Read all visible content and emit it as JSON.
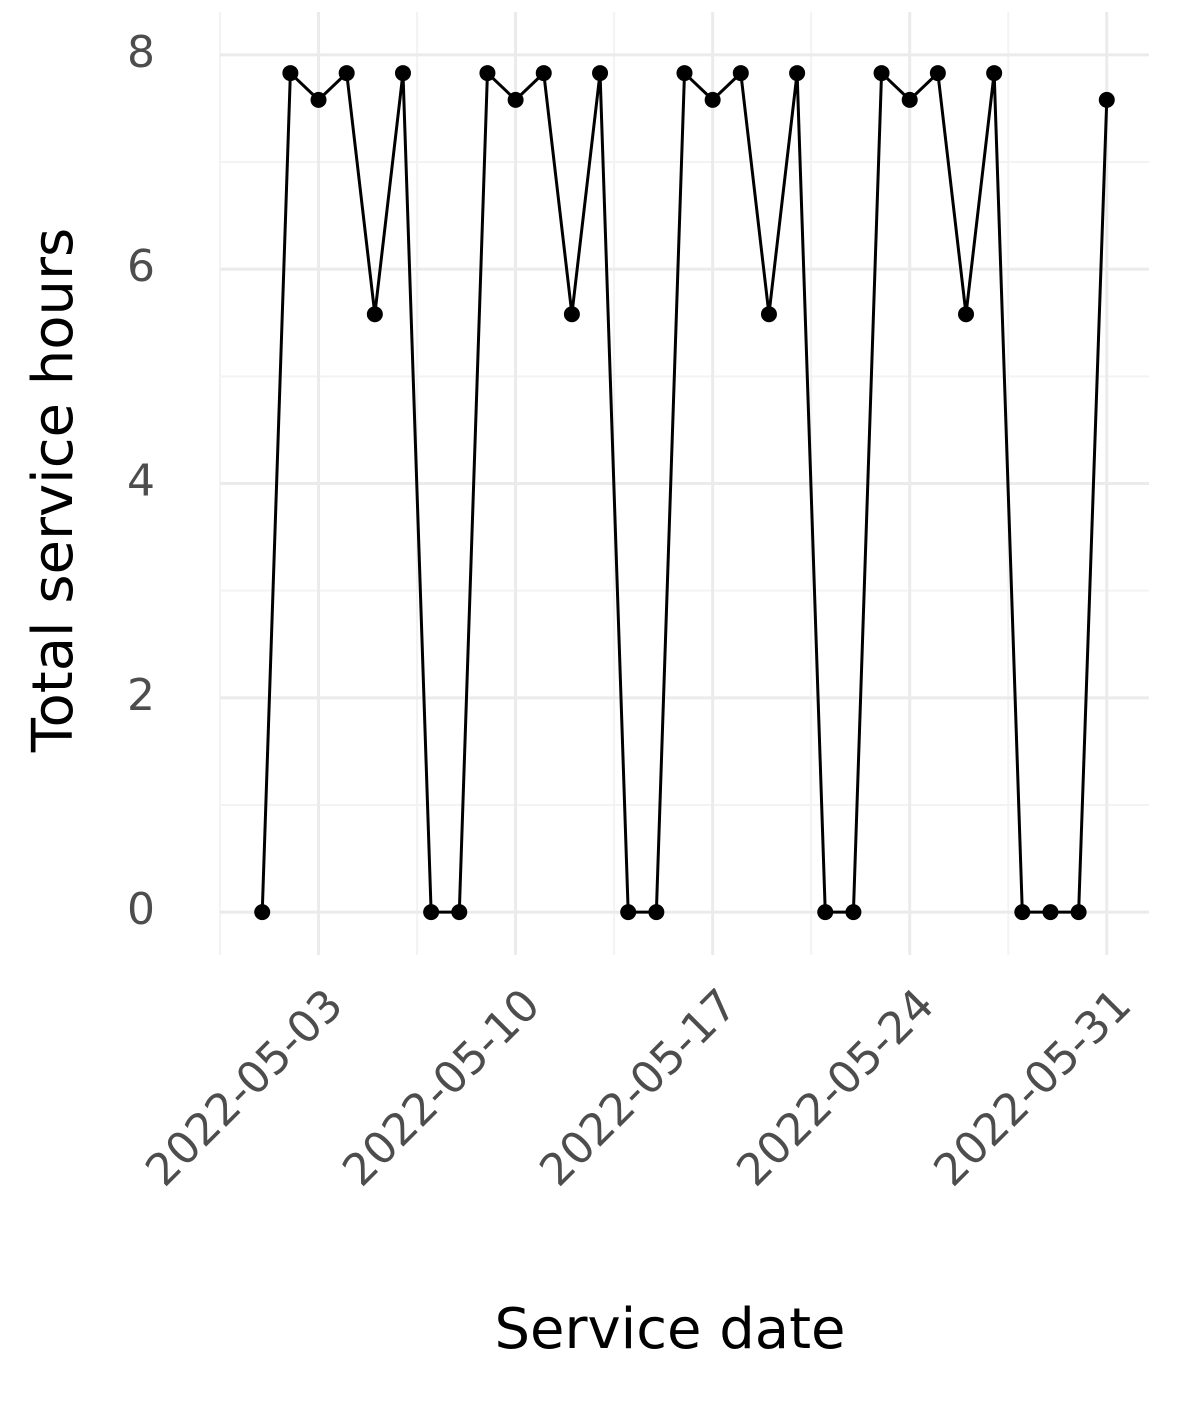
{
  "chart_data": {
    "type": "line",
    "x_label": "Service date",
    "y_label": "Total service hours",
    "x": [
      "2022-05-01",
      "2022-05-02",
      "2022-05-03",
      "2022-05-04",
      "2022-05-05",
      "2022-05-06",
      "2022-05-07",
      "2022-05-08",
      "2022-05-09",
      "2022-05-10",
      "2022-05-11",
      "2022-05-12",
      "2022-05-13",
      "2022-05-14",
      "2022-05-15",
      "2022-05-16",
      "2022-05-17",
      "2022-05-18",
      "2022-05-19",
      "2022-05-20",
      "2022-05-21",
      "2022-05-22",
      "2022-05-23",
      "2022-05-24",
      "2022-05-25",
      "2022-05-26",
      "2022-05-27",
      "2022-05-28",
      "2022-05-29",
      "2022-05-30",
      "2022-05-31"
    ],
    "values": [
      0,
      7.83,
      7.58,
      7.83,
      5.58,
      7.83,
      0,
      0,
      7.83,
      7.58,
      7.83,
      5.58,
      7.83,
      0,
      0,
      7.83,
      7.58,
      7.83,
      5.58,
      7.83,
      0,
      0,
      7.83,
      7.58,
      7.83,
      5.58,
      7.83,
      0,
      0,
      0,
      7.58
    ],
    "color": "#000000",
    "xlim": [
      "2022-04-29T12:00",
      "2022-06-01T12:00"
    ],
    "xticks": [
      "2022-05-03",
      "2022-05-10",
      "2022-05-17",
      "2022-05-24",
      "2022-05-31"
    ],
    "ylim": [
      -0.4,
      8.4
    ],
    "yticks": [
      0,
      2,
      4,
      6,
      8
    ],
    "grid": true,
    "minor_grid": true
  }
}
